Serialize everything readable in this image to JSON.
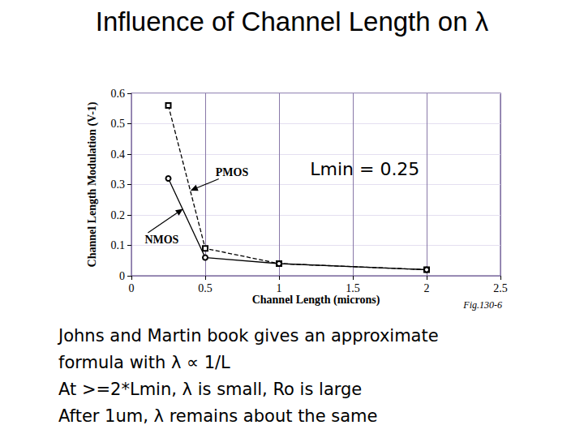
{
  "chart_data": {
    "type": "line",
    "title": "Influence of Channel Length on λ",
    "x_label": "Channel Length (microns)",
    "y_label": "Channel Length Modulation (V-1)",
    "x": [
      0.25,
      0.5,
      1,
      2
    ],
    "series": [
      {
        "name": "PMOS",
        "color": "#000000",
        "marker": "square",
        "line_style": "dashed",
        "values": [
          0.56,
          0.09,
          0.04,
          0.02
        ]
      },
      {
        "name": "NMOS",
        "color": "#000000",
        "marker": "circle",
        "line_style": "solid",
        "values": [
          0.32,
          0.06,
          0.04,
          0.02
        ]
      }
    ],
    "xlim": [
      0,
      2.5
    ],
    "xticks": [
      0,
      0.5,
      1,
      1.5,
      2,
      2.5
    ],
    "ylim": [
      0,
      0.6
    ],
    "yticks": [
      0,
      0.1,
      0.2,
      0.3,
      0.4,
      0.5,
      0.6
    ],
    "grid": true,
    "annotations": [
      {
        "text": "PMOS",
        "x": 0.57,
        "y": 0.34,
        "arrow": [
          0.4,
          0.28
        ]
      },
      {
        "text": "NMOS",
        "x": 0.09,
        "y": 0.12,
        "arrow": [
          0.35,
          0.22
        ]
      },
      {
        "text": "Lmin = 0.25",
        "x": 1.21,
        "y": 0.35
      }
    ],
    "figure_label": "Fig.130-6",
    "text_lines": [
      "Johns and Martin book gives an approximate",
      "formula with λ ∝ 1/L",
      "At >=2*Lmin, λ is small, Ro is large",
      "After 1um, λ remains about the same"
    ]
  }
}
